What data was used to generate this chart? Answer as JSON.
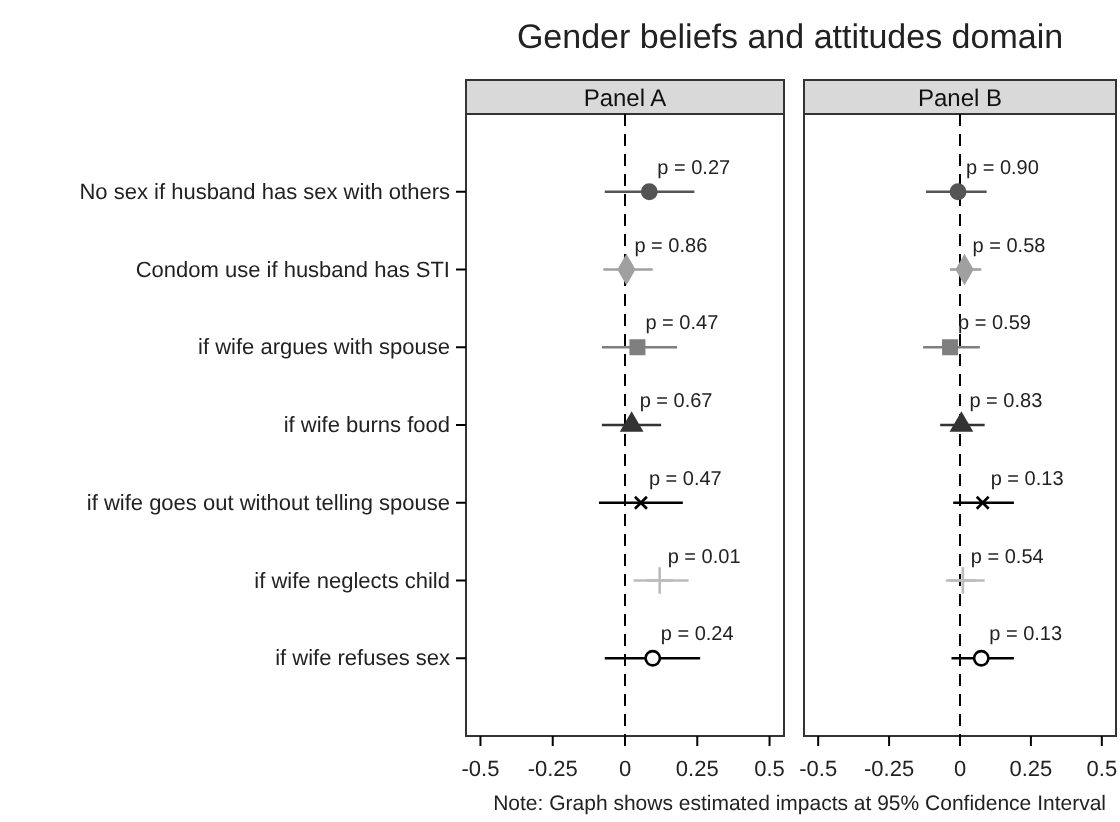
{
  "chart_data": [
    {
      "type": "scatter",
      "title": "Gender beliefs and attitudes domain",
      "subtitle": "Panel A",
      "orientation": "horizontal",
      "categories": [
        "No sex if husband has sex with others",
        "Condom use if husband has STI",
        "if wife argues with spouse",
        "if wife burns food",
        "if wife goes out without telling spouse",
        "if wife neglects child",
        "if wife refuses sex"
      ],
      "xlim": [
        -0.55,
        0.55
      ],
      "xticks": [
        -0.5,
        -0.25,
        0,
        0.25,
        0.5
      ],
      "ref_lines": [
        {
          "axis": "x",
          "value": 0,
          "line_style": "dashed",
          "color": "#000000"
        }
      ],
      "series": [
        {
          "color": "#555555",
          "marker": "circle",
          "values": [
            0.084,
            null,
            null,
            null,
            null,
            null,
            null
          ],
          "errors": [
            [
              -0.07,
              0.24
            ],
            null,
            null,
            null,
            null,
            null,
            null
          ]
        },
        {
          "color": "#a0a0a0",
          "marker": "diamond",
          "values": [
            null,
            0.005,
            null,
            null,
            null,
            null,
            null
          ],
          "errors": [
            null,
            [
              -0.075,
              0.096
            ],
            null,
            null,
            null,
            null,
            null
          ]
        },
        {
          "color": "#7f7f7f",
          "marker": "square",
          "values": [
            null,
            null,
            0.043,
            null,
            null,
            null,
            null
          ],
          "errors": [
            null,
            null,
            [
              -0.08,
              0.18
            ],
            null,
            null,
            null,
            null
          ]
        },
        {
          "color": "#333333",
          "marker": "triangle",
          "values": [
            null,
            null,
            null,
            0.023,
            null,
            null,
            null
          ],
          "errors": [
            null,
            null,
            null,
            [
              -0.08,
              0.125
            ],
            null,
            null,
            null
          ]
        },
        {
          "color": "#000000",
          "marker": "x",
          "values": [
            null,
            null,
            null,
            null,
            0.055,
            null,
            null
          ],
          "errors": [
            null,
            null,
            null,
            null,
            [
              -0.09,
              0.2
            ],
            null,
            null
          ]
        },
        {
          "color": "#bbbbbb",
          "marker": "cross",
          "values": [
            null,
            null,
            null,
            null,
            null,
            0.12,
            null
          ],
          "errors": [
            null,
            null,
            null,
            null,
            null,
            [
              0.03,
              0.22
            ],
            null
          ]
        },
        {
          "color": "#000000",
          "marker": "circle-open",
          "values": [
            null,
            null,
            null,
            null,
            null,
            null,
            0.096
          ],
          "errors": [
            null,
            null,
            null,
            null,
            null,
            null,
            [
              -0.07,
              0.26
            ]
          ]
        }
      ],
      "annotations": [
        {
          "text": "p = 0.27",
          "x": 0.084,
          "y": "No sex if husband has sex with others"
        },
        {
          "text": "p = 0.86",
          "x": 0.005,
          "y": "Condom use if husband has STI"
        },
        {
          "text": "p = 0.47",
          "x": 0.043,
          "y": "if wife argues with spouse"
        },
        {
          "text": "p = 0.67",
          "x": 0.023,
          "y": "if wife burns food"
        },
        {
          "text": "p = 0.47",
          "x": 0.055,
          "y": "if wife goes out without telling spouse"
        },
        {
          "text": "p = 0.01",
          "x": 0.12,
          "y": "if wife neglects child"
        },
        {
          "text": "p = 0.24",
          "x": 0.096,
          "y": "if wife refuses sex"
        }
      ]
    },
    {
      "type": "scatter",
      "subtitle": "Panel B",
      "orientation": "horizontal",
      "tick_labels": "x",
      "categories": [
        "No sex if husband has sex with others",
        "Condom use if husband has STI",
        "if wife argues with spouse",
        "if wife burns food",
        "if wife goes out without telling spouse",
        "if wife neglects child",
        "if wife refuses sex"
      ],
      "xlim": [
        -0.55,
        0.55
      ],
      "xticks": [
        -0.5,
        -0.25,
        0,
        0.25,
        0.5
      ],
      "ref_lines": [
        {
          "axis": "x",
          "value": 0,
          "line_style": "dashed",
          "color": "#000000"
        }
      ],
      "series": [
        {
          "color": "#555555",
          "marker": "circle",
          "values": [
            -0.007,
            null,
            null,
            null,
            null,
            null,
            null
          ],
          "errors": [
            [
              -0.12,
              0.094
            ],
            null,
            null,
            null,
            null,
            null,
            null
          ]
        },
        {
          "color": "#a0a0a0",
          "marker": "diamond",
          "values": [
            null,
            0.016,
            null,
            null,
            null,
            null,
            null
          ],
          "errors": [
            null,
            [
              -0.035,
              0.075
            ],
            null,
            null,
            null,
            null,
            null
          ]
        },
        {
          "color": "#7f7f7f",
          "marker": "square",
          "values": [
            null,
            null,
            -0.035,
            null,
            null,
            null,
            null
          ],
          "errors": [
            null,
            null,
            [
              -0.13,
              0.07
            ],
            null,
            null,
            null,
            null
          ]
        },
        {
          "color": "#333333",
          "marker": "triangle",
          "values": [
            null,
            null,
            null,
            0.005,
            null,
            null,
            null
          ],
          "errors": [
            null,
            null,
            null,
            [
              -0.07,
              0.087
            ],
            null,
            null,
            null
          ]
        },
        {
          "color": "#000000",
          "marker": "x",
          "values": [
            null,
            null,
            null,
            null,
            0.08,
            null,
            null
          ],
          "errors": [
            null,
            null,
            null,
            null,
            [
              -0.024,
              0.19
            ],
            null,
            null
          ]
        },
        {
          "color": "#bbbbbb",
          "marker": "cross",
          "values": [
            null,
            null,
            null,
            null,
            null,
            0.01,
            null
          ],
          "errors": [
            null,
            null,
            null,
            null,
            null,
            [
              -0.05,
              0.087
            ],
            null
          ]
        },
        {
          "color": "#000000",
          "marker": "circle-open",
          "values": [
            null,
            null,
            null,
            null,
            null,
            null,
            0.075
          ],
          "errors": [
            null,
            null,
            null,
            null,
            null,
            null,
            [
              -0.03,
              0.19
            ]
          ]
        }
      ],
      "annotations": [
        {
          "text": "p = 0.90",
          "x": -0.007,
          "y": "No sex if husband has sex with others"
        },
        {
          "text": "p = 0.58",
          "x": 0.016,
          "y": "Condom use if husband has STI"
        },
        {
          "text": "p = 0.59",
          "x": -0.035,
          "y": "if wife argues with spouse"
        },
        {
          "text": "p = 0.83",
          "x": 0.005,
          "y": "if wife burns food"
        },
        {
          "text": "p = 0.13",
          "x": 0.08,
          "y": "if wife goes out without telling spouse"
        },
        {
          "text": "p = 0.54",
          "x": 0.01,
          "y": "if wife neglects child"
        },
        {
          "text": "p = 0.13",
          "x": 0.075,
          "y": "if wife refuses sex"
        },
        "Note: Graph shows estimated impacts at 95% Confidence Interval"
      ]
    }
  ]
}
